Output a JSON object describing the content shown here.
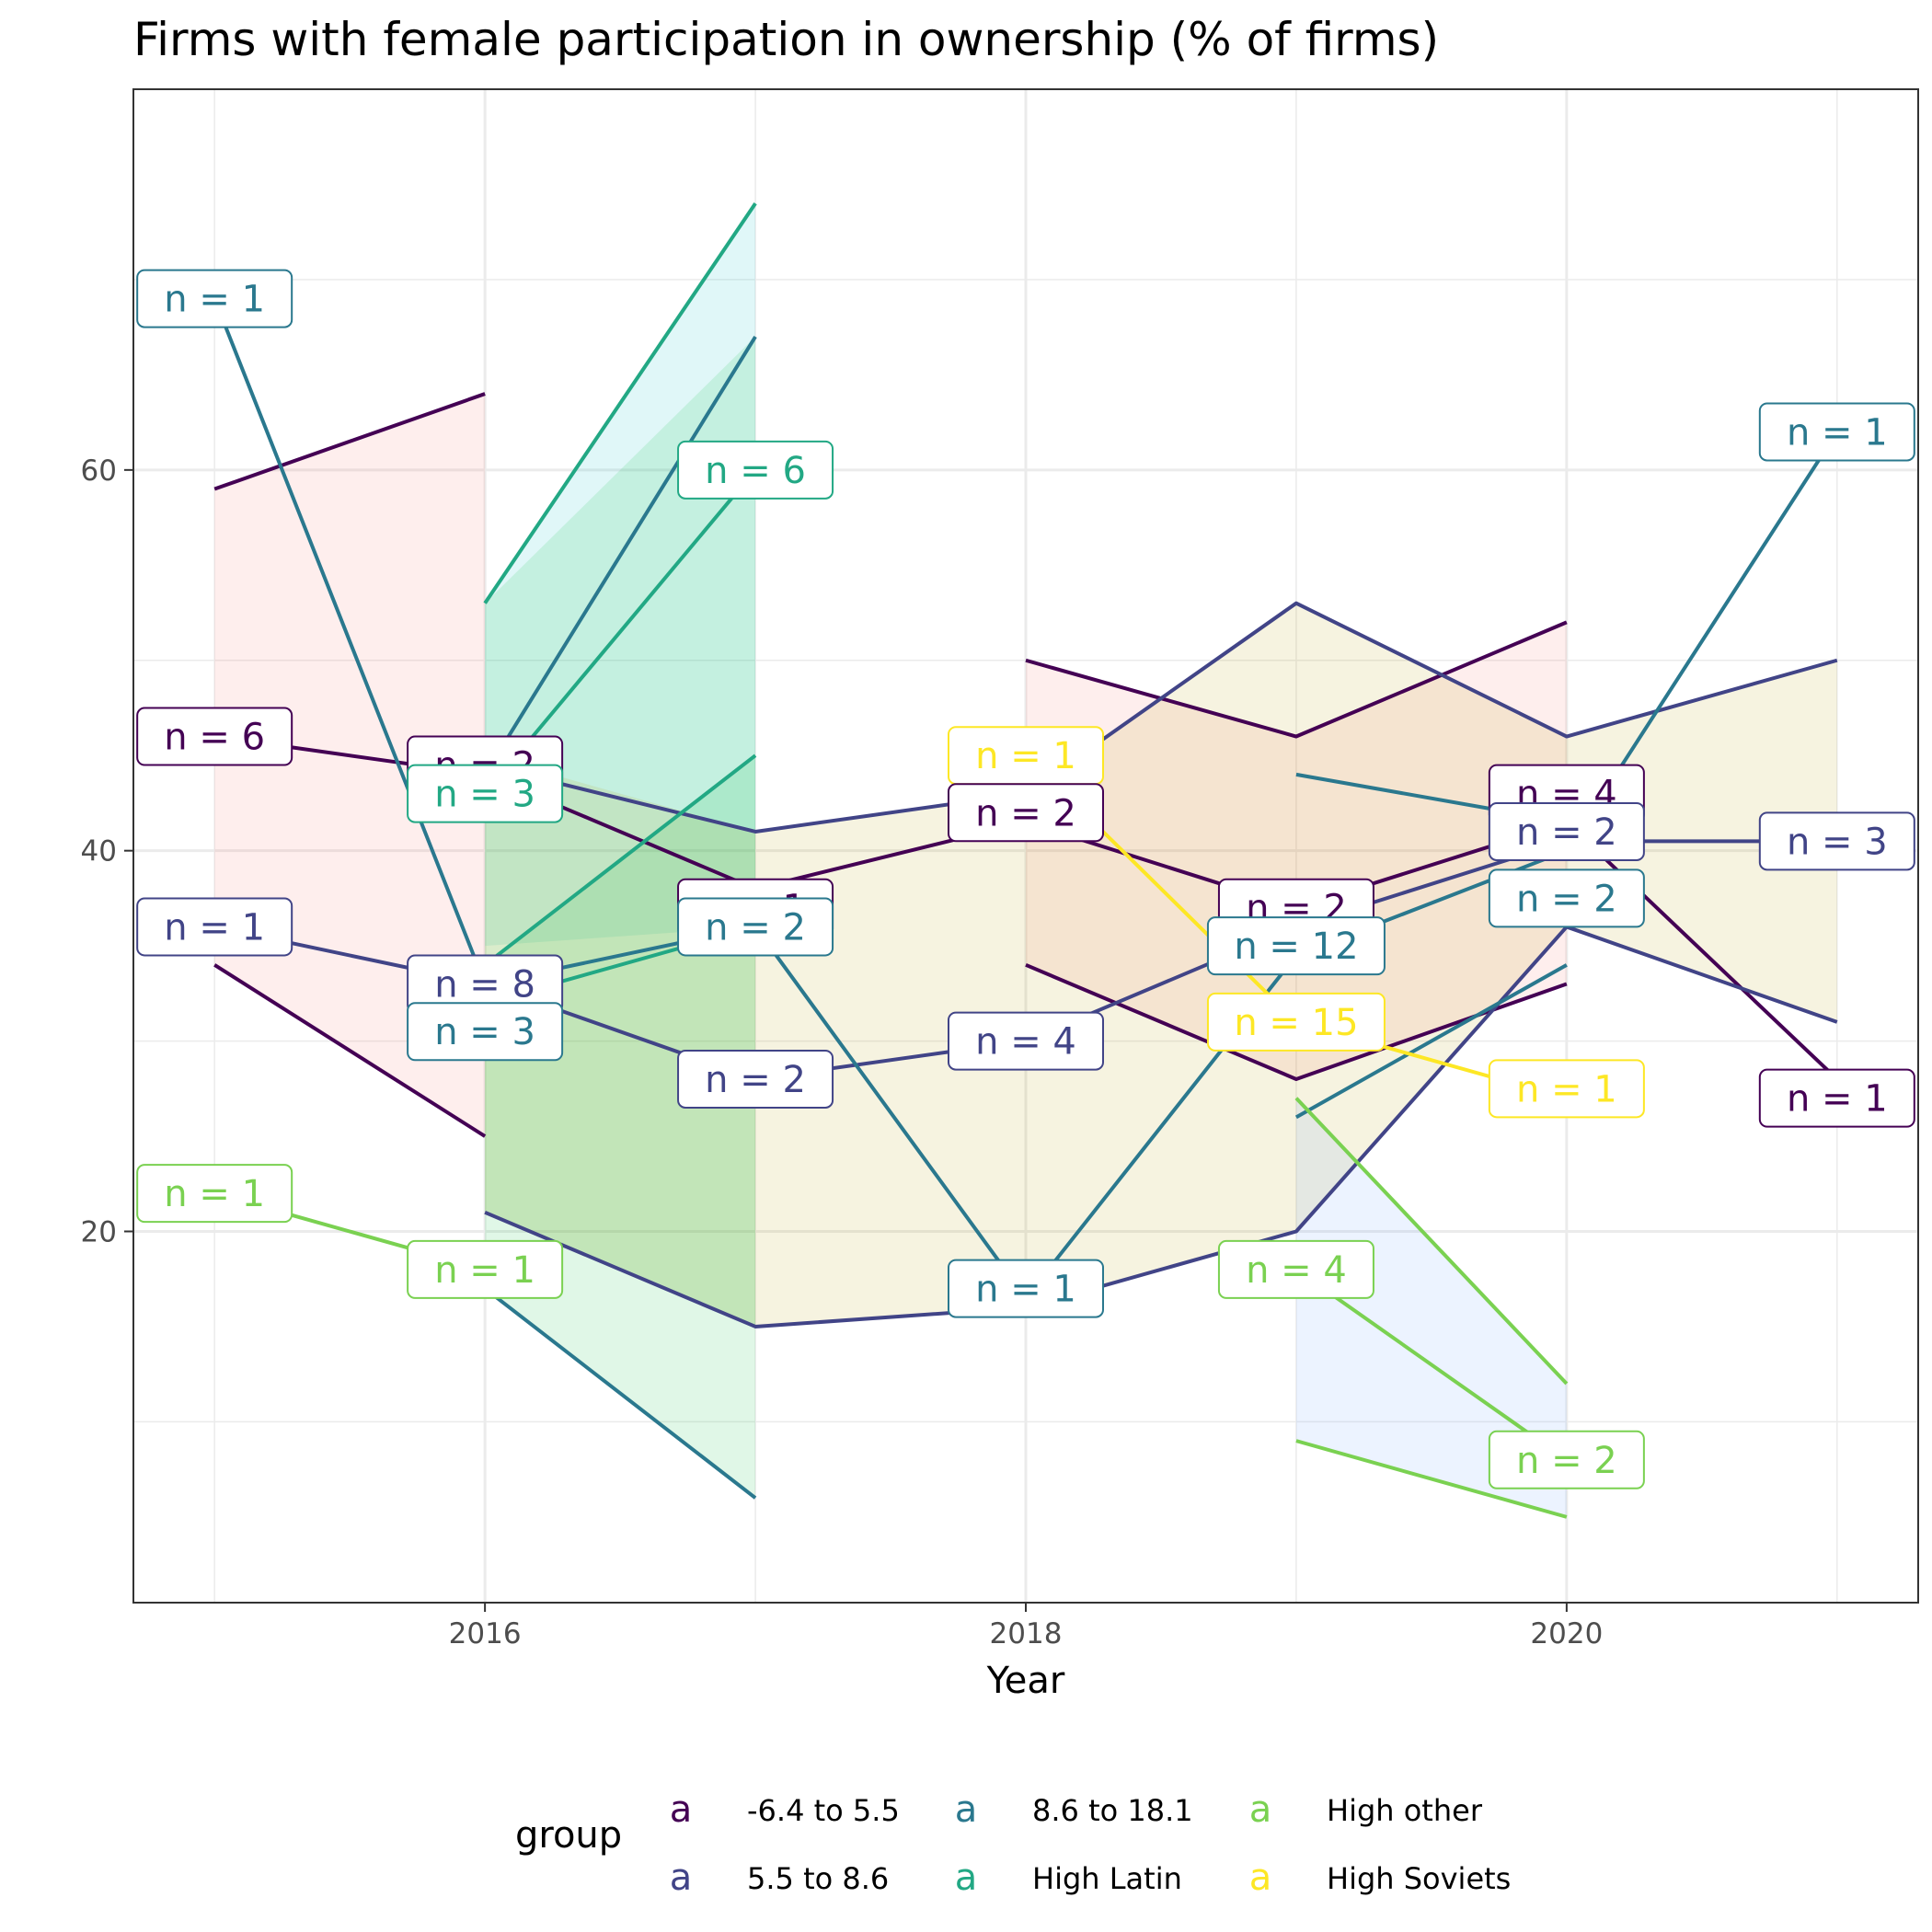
{
  "chart_data": {
    "type": "line",
    "title": "Firms with female participation in ownership (% of firms)",
    "xlabel": "Year",
    "ylabel": "",
    "xlim": [
      2014.7,
      2021.3
    ],
    "ylim": [
      0.5,
      80
    ],
    "x_ticks": [
      2016,
      2018,
      2020
    ],
    "y_ticks": [
      20,
      40,
      60
    ],
    "grid": true,
    "legend": {
      "title": "group",
      "position": "bottom",
      "key_glyph": "a",
      "entries": [
        {
          "label": "-6.4 to 5.5",
          "color": "#440154"
        },
        {
          "label": "5.5 to 8.6",
          "color": "#414487"
        },
        {
          "label": "8.6 to 18.1",
          "color": "#2A788E"
        },
        {
          "label": "High Latin",
          "color": "#22A884"
        },
        {
          "label": "High other",
          "color": "#7AD151"
        },
        {
          "label": "High Soviets",
          "color": "#FDE725"
        }
      ]
    },
    "ribbons": [
      {
        "group": "-6.4 to 5.5",
        "fill": "#F8766D",
        "x": [
          2015,
          2016
        ],
        "ymin": [
          34,
          25
        ],
        "ymax": [
          59,
          64
        ]
      },
      {
        "group": "-6.4 to 5.5",
        "fill": "#F8766D",
        "x": [
          2018,
          2019,
          2020
        ],
        "ymin": [
          34,
          28,
          33
        ],
        "ymax": [
          50,
          46,
          52
        ]
      },
      {
        "group": "8.6 to 18.1",
        "fill": "#00BFC4",
        "x": [
          2016,
          2017
        ],
        "ymin": [
          35,
          36
        ],
        "ymax": [
          53,
          74
        ]
      },
      {
        "group": "High Latin",
        "fill": "#00BA38",
        "x": [
          2016,
          2017
        ],
        "ymin": [
          21,
          15
        ],
        "ymax": [
          53,
          67
        ]
      },
      {
        "group": "High Latin",
        "fill": "#00BA38",
        "x": [
          2016,
          2017
        ],
        "ymin": [
          17,
          6
        ],
        "ymax": [
          34,
          45
        ]
      },
      {
        "group": "5.5 to 8.6",
        "fill": "#B79F00",
        "x": [
          2016,
          2017,
          2018,
          2019,
          2020,
          2021
        ],
        "ymin": [
          21,
          15,
          16,
          20,
          36,
          31
        ],
        "ymax": [
          45,
          41,
          43,
          53,
          46,
          50
        ]
      },
      {
        "group": "High other",
        "fill": "#619CFF",
        "x": [
          2019,
          2020
        ],
        "ymin": [
          9,
          5
        ],
        "ymax": [
          27,
          12
        ]
      }
    ],
    "series": [
      {
        "name": "",
        "group": "-6.4 to 5.5",
        "color": "#440154",
        "x": [
          2015,
          2016
        ],
        "y": [
          59,
          64
        ]
      },
      {
        "name": "",
        "group": "-6.4 to 5.5",
        "color": "#440154",
        "x": [
          2015,
          2016
        ],
        "y": [
          34,
          25
        ]
      },
      {
        "name": "",
        "group": "-6.4 to 5.5",
        "color": "#440154",
        "x": [
          2015,
          2016,
          2017,
          2018,
          2019,
          2020,
          2021
        ],
        "y": [
          46,
          44,
          38,
          41.5,
          37,
          41.5,
          28
        ]
      },
      {
        "name": "",
        "group": "-6.4 to 5.5",
        "color": "#440154",
        "x": [
          2018,
          2019,
          2020
        ],
        "y": [
          50,
          46,
          52
        ]
      },
      {
        "name": "",
        "group": "-6.4 to 5.5",
        "color": "#440154",
        "x": [
          2018,
          2019,
          2020
        ],
        "y": [
          34,
          28,
          33
        ]
      },
      {
        "name": "",
        "group": "5.5 to 8.6",
        "color": "#414487",
        "x": [
          2015,
          2016,
          2017,
          2018,
          2019,
          2020,
          2021
        ],
        "y": [
          36,
          33,
          28,
          30,
          36,
          40.5,
          40.5
        ]
      },
      {
        "name": "",
        "group": "5.5 to 8.6",
        "color": "#414487",
        "x": [
          2016,
          2017,
          2018
        ],
        "y": [
          44.5,
          41,
          43
        ]
      },
      {
        "name": "",
        "group": "5.5 to 8.6",
        "color": "#414487",
        "x": [
          2018,
          2019,
          2020,
          2021
        ],
        "y": [
          43,
          53,
          46,
          50
        ]
      },
      {
        "name": "",
        "group": "5.5 to 8.6",
        "color": "#414487",
        "x": [
          2016,
          2017,
          2018,
          2019,
          2020,
          2021
        ],
        "y": [
          21,
          15,
          16,
          20,
          36,
          31
        ]
      },
      {
        "name": "",
        "group": "8.6 to 18.1",
        "color": "#2A788E",
        "x": [
          2015,
          2016,
          2017,
          2018,
          2019,
          2020,
          2021
        ],
        "y": [
          69,
          33,
          36,
          16.5,
          34.5,
          40,
          62
        ]
      },
      {
        "name": "",
        "group": "8.6 to 18.1",
        "color": "#2A788E",
        "x": [
          2016,
          2017
        ],
        "y": [
          44,
          67
        ]
      },
      {
        "name": "",
        "group": "8.6 to 18.1",
        "color": "#2A788E",
        "x": [
          2016,
          2017
        ],
        "y": [
          17,
          6
        ]
      },
      {
        "name": "",
        "group": "8.6 to 18.1",
        "color": "#2A788E",
        "x": [
          2019,
          2020
        ],
        "y": [
          44,
          41.5
        ]
      },
      {
        "name": "",
        "group": "8.6 to 18.1",
        "color": "#2A788E",
        "x": [
          2019,
          2020
        ],
        "y": [
          26,
          34
        ]
      },
      {
        "name": "",
        "group": "High Latin",
        "color": "#22A884",
        "x": [
          2016,
          2017
        ],
        "y": [
          53,
          74
        ]
      },
      {
        "name": "",
        "group": "High Latin",
        "color": "#22A884",
        "x": [
          2016,
          2017
        ],
        "y": [
          43,
          60
        ]
      },
      {
        "name": "",
        "group": "High Latin",
        "color": "#22A884",
        "x": [
          2016,
          2017
        ],
        "y": [
          34,
          45
        ]
      },
      {
        "name": "",
        "group": "High Latin",
        "color": "#22A884",
        "x": [
          2016,
          2017
        ],
        "y": [
          32,
          36
        ]
      },
      {
        "name": "",
        "group": "High other",
        "color": "#7AD151",
        "x": [
          2015,
          2016
        ],
        "y": [
          22,
          18
        ]
      },
      {
        "name": "",
        "group": "High other",
        "color": "#7AD151",
        "x": [
          2019,
          2020
        ],
        "y": [
          18,
          8
        ]
      },
      {
        "name": "",
        "group": "High other",
        "color": "#7AD151",
        "x": [
          2019,
          2020
        ],
        "y": [
          27,
          12
        ]
      },
      {
        "name": "",
        "group": "High other",
        "color": "#7AD151",
        "x": [
          2019,
          2020
        ],
        "y": [
          9,
          5
        ]
      },
      {
        "name": "",
        "group": "High Soviets",
        "color": "#FDE725",
        "x": [
          2018,
          2019,
          2020
        ],
        "y": [
          45,
          31,
          27
        ]
      }
    ],
    "annotations": [
      {
        "x": 2015,
        "y": 69,
        "text": "n = 1",
        "color": "#2A788E"
      },
      {
        "x": 2015,
        "y": 46,
        "text": "n = 6",
        "color": "#440154"
      },
      {
        "x": 2015,
        "y": 36,
        "text": "n = 1",
        "color": "#414487"
      },
      {
        "x": 2015,
        "y": 22,
        "text": "n = 1",
        "color": "#7AD151"
      },
      {
        "x": 2016,
        "y": 44.5,
        "text": "n = 2",
        "color": "#440154"
      },
      {
        "x": 2016,
        "y": 43,
        "text": "n = 3",
        "color": "#22A884"
      },
      {
        "x": 2016,
        "y": 33,
        "text": "n = 8",
        "color": "#414487"
      },
      {
        "x": 2016,
        "y": 30.5,
        "text": "n = 3",
        "color": "#2A788E"
      },
      {
        "x": 2016,
        "y": 18,
        "text": "n = 1",
        "color": "#7AD151"
      },
      {
        "x": 2017,
        "y": 60,
        "text": "n = 6",
        "color": "#22A884"
      },
      {
        "x": 2017,
        "y": 37,
        "text": "n = 1",
        "color": "#440154"
      },
      {
        "x": 2017,
        "y": 36,
        "text": "n = 2",
        "color": "#2A788E"
      },
      {
        "x": 2017,
        "y": 28,
        "text": "n = 2",
        "color": "#414487"
      },
      {
        "x": 2018,
        "y": 45,
        "text": "n = 1",
        "color": "#FDE725"
      },
      {
        "x": 2018,
        "y": 42,
        "text": "n = 2",
        "color": "#440154"
      },
      {
        "x": 2018,
        "y": 30,
        "text": "n = 4",
        "color": "#414487"
      },
      {
        "x": 2018,
        "y": 17,
        "text": "n = 1",
        "color": "#2A788E"
      },
      {
        "x": 2019,
        "y": 37,
        "text": "n = 2",
        "color": "#440154"
      },
      {
        "x": 2019,
        "y": 35,
        "text": "n = 12",
        "color": "#2A788E"
      },
      {
        "x": 2019,
        "y": 31,
        "text": "n = 15",
        "color": "#FDE725"
      },
      {
        "x": 2019,
        "y": 18,
        "text": "n = 4",
        "color": "#7AD151"
      },
      {
        "x": 2020,
        "y": 43,
        "text": "n = 4",
        "color": "#440154"
      },
      {
        "x": 2020,
        "y": 41,
        "text": "n = 2",
        "color": "#414487"
      },
      {
        "x": 2020,
        "y": 37.5,
        "text": "n = 2",
        "color": "#2A788E"
      },
      {
        "x": 2020,
        "y": 27.5,
        "text": "n = 1",
        "color": "#FDE725"
      },
      {
        "x": 2020,
        "y": 8,
        "text": "n = 2",
        "color": "#7AD151"
      },
      {
        "x": 2021,
        "y": 62,
        "text": "n = 1",
        "color": "#2A788E"
      },
      {
        "x": 2021,
        "y": 40.5,
        "text": "n = 3",
        "color": "#414487"
      },
      {
        "x": 2021,
        "y": 27,
        "text": "n = 1",
        "color": "#440154"
      }
    ]
  }
}
